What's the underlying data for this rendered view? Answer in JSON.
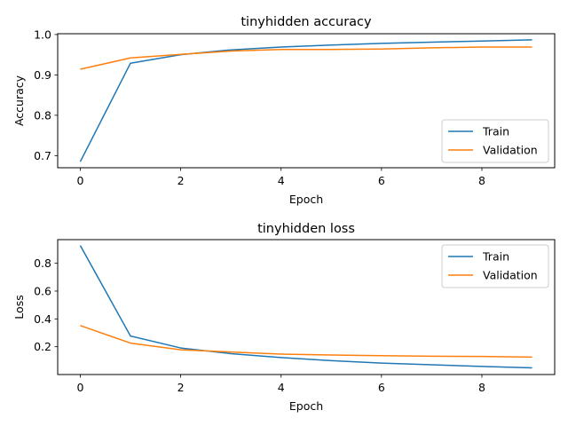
{
  "chart_data": [
    {
      "type": "line",
      "title": "tinyhidden accuracy",
      "xlabel": "Epoch",
      "ylabel": "Accuracy",
      "xlim": [
        -0.45,
        9.45
      ],
      "ylim": [
        0.67,
        1.002
      ],
      "xticks": [
        0,
        2,
        4,
        6,
        8
      ],
      "yticks": [
        0.7,
        0.8,
        0.9,
        1.0
      ],
      "ytick_labels": [
        "0.7",
        "0.8",
        "0.9",
        "1.0"
      ],
      "grid": false,
      "legend": "bottom-right",
      "x": [
        0,
        1,
        2,
        3,
        4,
        5,
        6,
        7,
        8,
        9
      ],
      "series": [
        {
          "name": "Train",
          "color": "#1f77b4",
          "values": [
            0.685,
            0.929,
            0.95,
            0.962,
            0.969,
            0.974,
            0.978,
            0.981,
            0.984,
            0.987
          ]
        },
        {
          "name": "Validation",
          "color": "#ff7f0e",
          "values": [
            0.914,
            0.942,
            0.951,
            0.959,
            0.963,
            0.963,
            0.964,
            0.967,
            0.969,
            0.969
          ]
        }
      ]
    },
    {
      "type": "line",
      "title": "tinyhidden loss",
      "xlabel": "Epoch",
      "ylabel": "Loss",
      "xlim": [
        -0.45,
        9.45
      ],
      "ylim": [
        0.0,
        0.97
      ],
      "xticks": [
        0,
        2,
        4,
        6,
        8
      ],
      "yticks": [
        0.2,
        0.4,
        0.6,
        0.8
      ],
      "ytick_labels": [
        "0.2",
        "0.4",
        "0.6",
        "0.8"
      ],
      "grid": false,
      "legend": "top-right",
      "x": [
        0,
        1,
        2,
        3,
        4,
        5,
        6,
        7,
        8,
        9
      ],
      "series": [
        {
          "name": "Train",
          "color": "#1f77b4",
          "values": [
            0.928,
            0.277,
            0.191,
            0.15,
            0.122,
            0.1,
            0.082,
            0.07,
            0.058,
            0.048
          ]
        },
        {
          "name": "Validation",
          "color": "#ff7f0e",
          "values": [
            0.352,
            0.226,
            0.178,
            0.162,
            0.147,
            0.14,
            0.136,
            0.132,
            0.13,
            0.125
          ]
        }
      ]
    }
  ]
}
